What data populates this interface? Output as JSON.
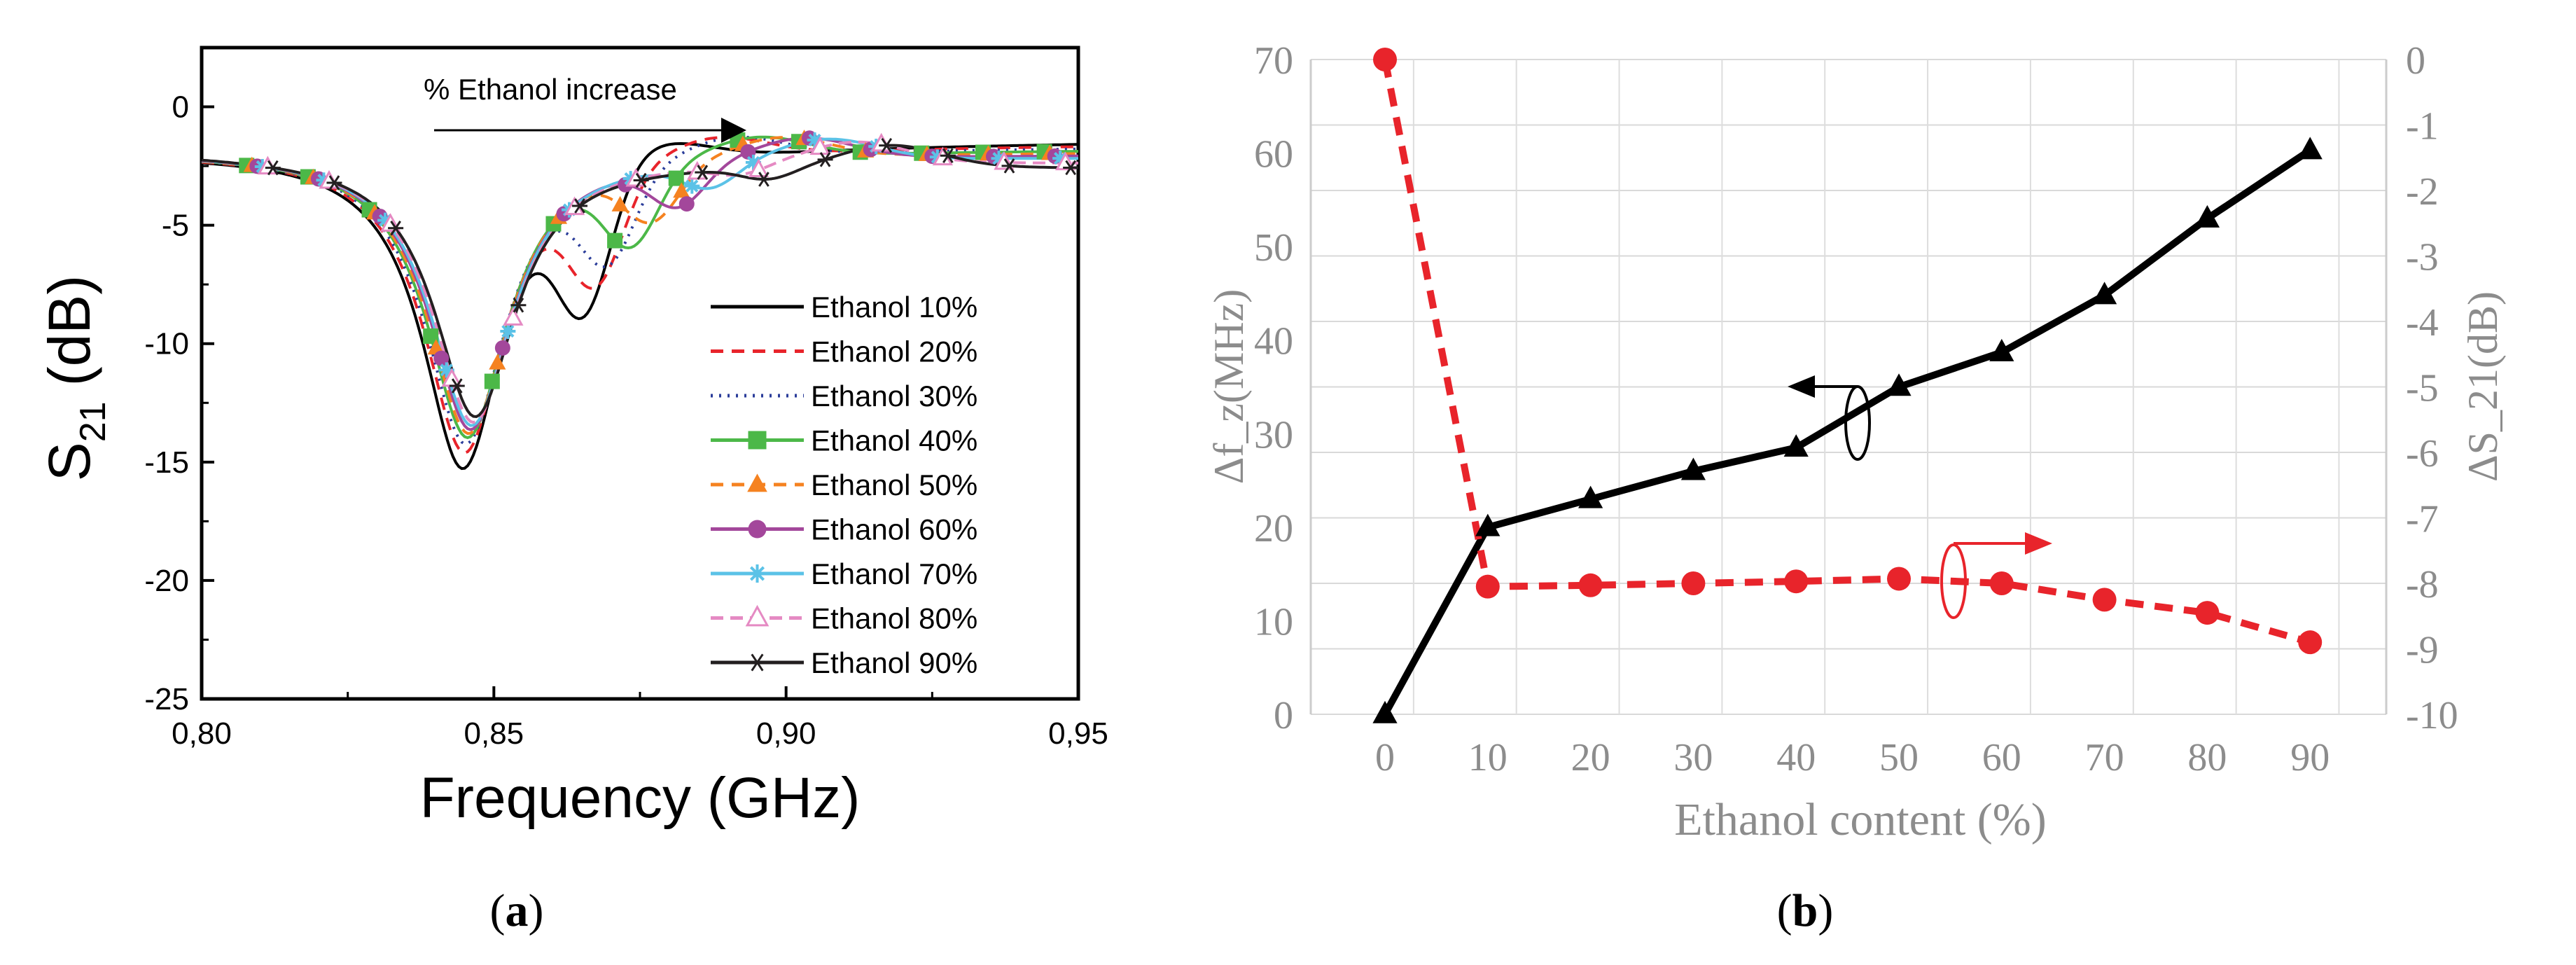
{
  "chart_data": [
    {
      "id": "a",
      "type": "line",
      "panel_label": "a",
      "xlabel": "Frequency (GHz)",
      "ylabel_main": "S",
      "ylabel_sub": "21",
      "ylabel_unit": "(dB)",
      "xlim": [
        0.8,
        0.95
      ],
      "ylim": [
        -25,
        2.5
      ],
      "xticks": [
        0.8,
        0.85,
        0.9,
        0.95
      ],
      "xtick_labels": [
        "0,80",
        "0,85",
        "0,90",
        "0,95"
      ],
      "yticks": [
        0,
        -5,
        -10,
        -15,
        -20,
        -25
      ],
      "ytick_labels": [
        "0",
        "-5",
        "-10",
        "-15",
        "-20",
        "-25"
      ],
      "annotation": "% Ethanol increase",
      "series": [
        {
          "name": "Ethanol 10%",
          "color": "#000000",
          "dash": "",
          "marker": "none",
          "resonance_freq": 0.8447,
          "resonance_db": -16.7,
          "second_dip_freq": 0.8655,
          "second_dip_db": -8.6,
          "second_peak_freq": 0.878,
          "second_peak_db": -3.1,
          "end_db": -1.5
        },
        {
          "name": "Ethanol 20%",
          "color": "#e8242b",
          "dash": "18,12",
          "marker": "none",
          "resonance_freq": 0.845,
          "resonance_db": -16.0,
          "second_dip_freq": 0.8675,
          "second_dip_db": -7.9,
          "second_peak_freq": 0.888,
          "second_peak_db": -3.6,
          "end_db": -1.6
        },
        {
          "name": "Ethanol 30%",
          "color": "#2b3d9a",
          "dash": "3,9",
          "marker": "none",
          "resonance_freq": 0.8452,
          "resonance_db": -15.6,
          "second_dip_freq": 0.8695,
          "second_dip_db": -7.6,
          "second_peak_freq": 0.891,
          "second_peak_db": -4.0,
          "end_db": -1.7
        },
        {
          "name": "Ethanol 40%",
          "color": "#4cb848",
          "dash": "",
          "marker": "square",
          "resonance_freq": 0.8455,
          "resonance_db": -15.3,
          "second_dip_freq": 0.8735,
          "second_dip_db": -7.5,
          "second_peak_freq": 0.895,
          "second_peak_db": -4.4,
          "end_db": -1.8
        },
        {
          "name": "Ethanol 50%",
          "color": "#f58220",
          "dash": "18,12",
          "marker": "triangle",
          "resonance_freq": 0.8457,
          "resonance_db": -15.1,
          "second_dip_freq": 0.877,
          "second_dip_db": -7.0,
          "second_peak_freq": 0.899,
          "second_peak_db": -4.8,
          "end_db": -1.9
        },
        {
          "name": "Ethanol 60%",
          "color": "#a3479b",
          "dash": "",
          "marker": "circle",
          "resonance_freq": 0.846,
          "resonance_db": -14.9,
          "second_dip_freq": 0.8815,
          "second_dip_db": -6.8,
          "second_peak_freq": 0.903,
          "second_peak_db": -5.1,
          "end_db": -2.0
        },
        {
          "name": "Ethanol 70%",
          "color": "#5bc2e7",
          "dash": "",
          "marker": "star",
          "resonance_freq": 0.8462,
          "resonance_db": -14.7,
          "second_dip_freq": 0.887,
          "second_dip_db": -6.4,
          "second_peak_freq": 0.907,
          "second_peak_db": -5.4,
          "end_db": -2.1
        },
        {
          "name": "Ethanol 80%",
          "color": "#e58ac3",
          "dash": "18,10",
          "marker": "open-triangle",
          "resonance_freq": 0.8465,
          "resonance_db": -14.5,
          "second_dip_freq": 0.892,
          "second_dip_db": -6.1,
          "second_peak_freq": 0.912,
          "second_peak_db": -5.7,
          "end_db": -2.3
        },
        {
          "name": "Ethanol 90%",
          "color": "#231f20",
          "dash": "",
          "marker": "asterisk",
          "resonance_freq": 0.8468,
          "resonance_db": -14.2,
          "second_dip_freq": 0.897,
          "second_dip_db": -5.3,
          "second_peak_freq": 0.918,
          "second_peak_db": -4.8,
          "end_db": -2.5
        }
      ]
    },
    {
      "id": "b",
      "type": "line",
      "panel_label": "b",
      "xlabel": "Ethanol content (%)",
      "ylabel_left": "Δf_z(MHz)",
      "ylabel_right": "ΔS_21(dB)",
      "categories": [
        "0",
        "10",
        "20",
        "30",
        "40",
        "50",
        "60",
        "70",
        "80",
        "90"
      ],
      "x": [
        0,
        10,
        20,
        30,
        40,
        50,
        60,
        70,
        80,
        90
      ],
      "ylim_left": [
        0,
        70
      ],
      "yticks_left": [
        0,
        10,
        20,
        30,
        40,
        50,
        60,
        70
      ],
      "ytick_labels_left": [
        "0",
        "10",
        "20",
        "30",
        "40",
        "50",
        "60",
        "70"
      ],
      "ylim_right": [
        -10,
        0
      ],
      "yticks_right": [
        0,
        -1,
        -2,
        -3,
        -4,
        -5,
        -6,
        -7,
        -8,
        -9,
        -10
      ],
      "ytick_labels_right": [
        "0",
        "-1",
        "-2",
        "-3",
        "-4",
        "-5",
        "-6",
        "-7",
        "-8",
        "-9",
        "-10"
      ],
      "grid": true,
      "series": [
        {
          "name": "Δf_z",
          "axis": "left",
          "color": "#000000",
          "dash": "",
          "marker": "triangle",
          "values": [
            0,
            20,
            23,
            26,
            28.5,
            35,
            38.7,
            44.8,
            53,
            60.3
          ]
        },
        {
          "name": "ΔS_21",
          "axis": "right",
          "color": "#e8242b",
          "dash": "26,16",
          "marker": "circle",
          "values": [
            0,
            -8.05,
            -8.03,
            -8.0,
            -7.97,
            -7.93,
            -8.0,
            -8.25,
            -8.45,
            -8.9
          ]
        }
      ]
    }
  ],
  "colors": {
    "axis": "#000000",
    "grid": "#d9d9d9",
    "gray_text": "#8c8c8c",
    "left_arrow": "#000000",
    "right_arrow": "#e8242b"
  }
}
